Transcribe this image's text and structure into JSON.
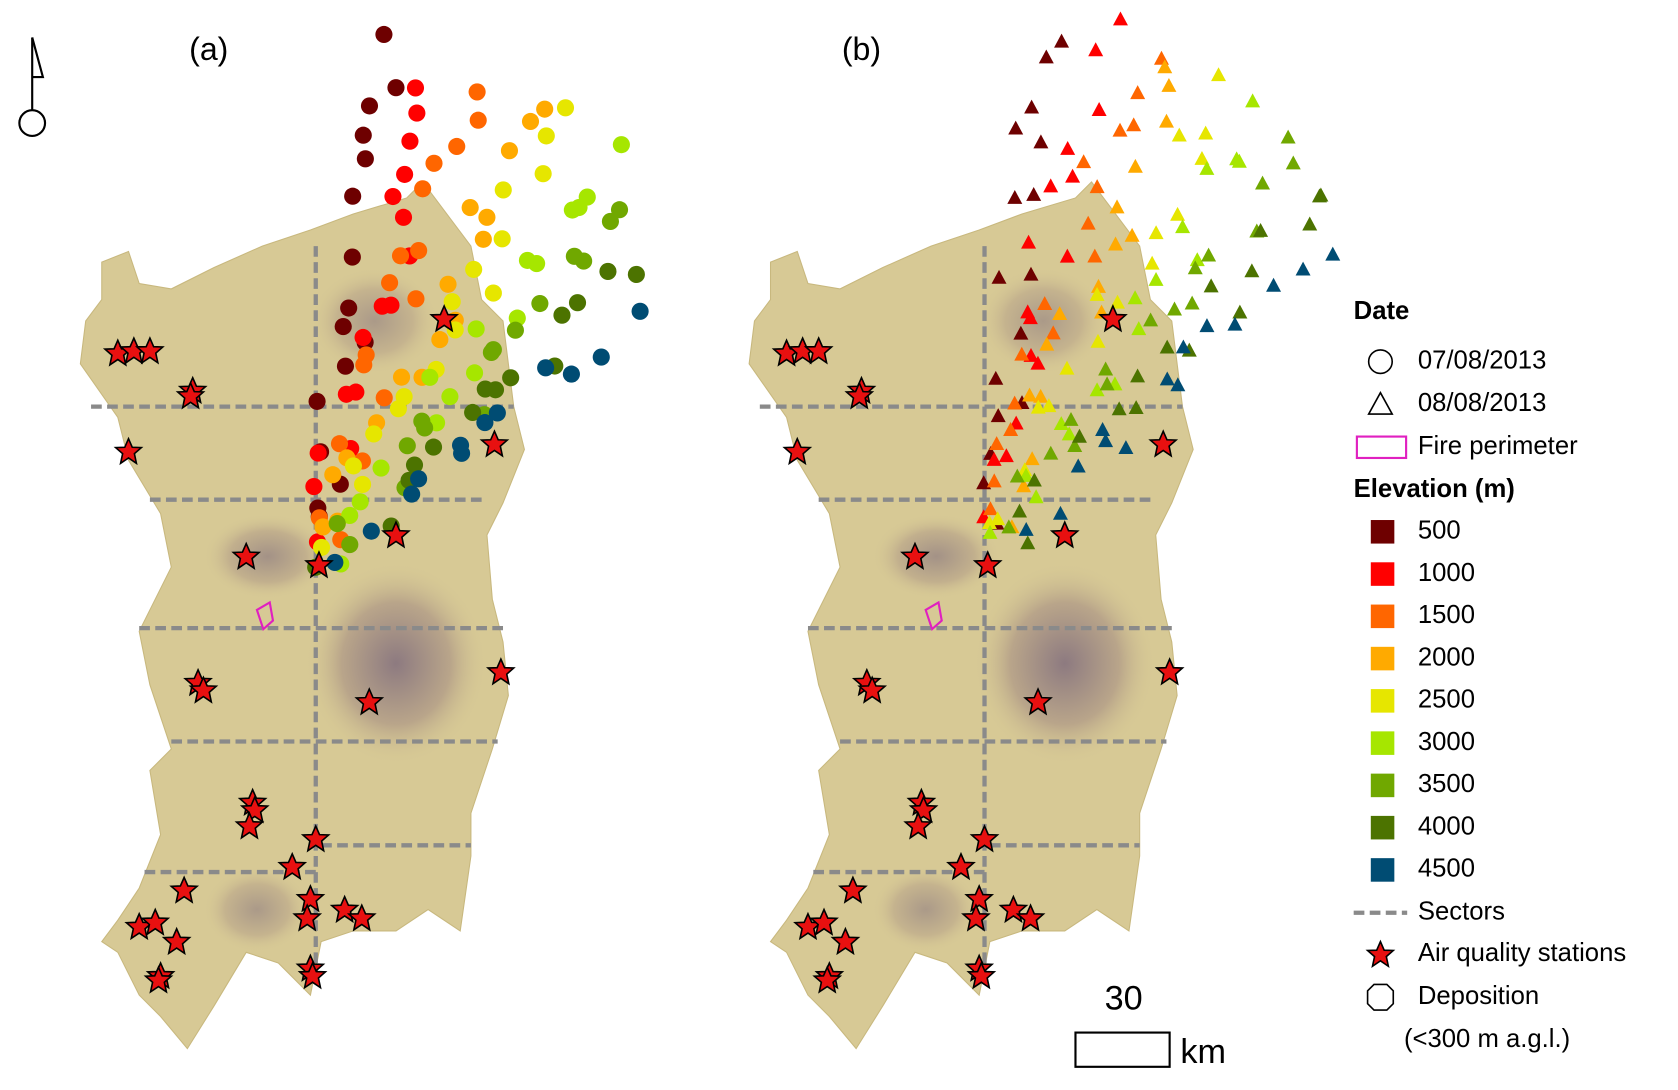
{
  "panels": [
    {
      "label": "(a)"
    },
    {
      "label": "(b)"
    }
  ],
  "legend": {
    "date_title": "Date",
    "dates": [
      "07/08/2013",
      "08/08/2013"
    ],
    "fire_perimeter": "Fire perimeter",
    "elevation_title": "Elevation (m)",
    "elevation_classes": [
      {
        "value": 500,
        "color": "#6e0000"
      },
      {
        "value": 1000,
        "color": "#ff0000"
      },
      {
        "value": 1500,
        "color": "#ff6600"
      },
      {
        "value": 2000,
        "color": "#ffaa00"
      },
      {
        "value": 2500,
        "color": "#e6e600"
      },
      {
        "value": 3000,
        "color": "#a6e600"
      },
      {
        "value": 3500,
        "color": "#70a800"
      },
      {
        "value": 4000,
        "color": "#4c7300"
      },
      {
        "value": 4500,
        "color": "#004c73"
      }
    ],
    "sectors": "Sectors",
    "stations": "Air quality stations",
    "deposition": "Deposition",
    "deposition_note": "(<300 m a.g.l.)"
  },
  "scale_bar": {
    "value": 30,
    "unit": "km"
  }
}
